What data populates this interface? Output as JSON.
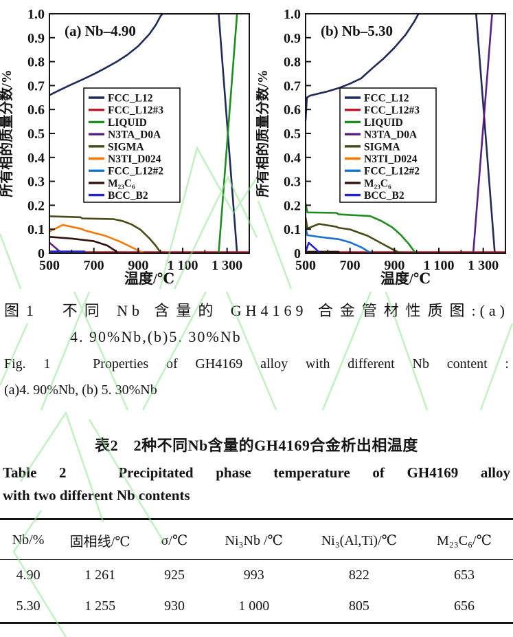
{
  "figure": {
    "caption_cn_line1": "图1　不同 Nb 含量的 GH4169 合金管材性质图:(a)",
    "caption_cn_line2": "4. 90%Nb,(b)5. 30%Nb",
    "caption_en_line1": "Fig. 1　Properties of GH4169 alloy with different Nb content :",
    "caption_en_line2": "(a)4. 90%Nb, (b) 5. 30%Nb"
  },
  "chart_data": [
    {
      "type": "line",
      "name": "phase-diagram-a",
      "title": "(a) Nb–4.90",
      "xlabel": "温度/℃",
      "ylabel": "所有相的质量分数/%",
      "xlim": [
        500,
        1400
      ],
      "ylim": [
        0,
        1.0
      ],
      "xticks": [
        500,
        700,
        900,
        1100,
        1300
      ],
      "xtick_labels": [
        "500",
        "700",
        "900",
        "1 100",
        "1 300"
      ],
      "xminor": [
        600,
        800,
        1000,
        1200
      ],
      "yticks": [
        0,
        0.1,
        0.2,
        0.3,
        0.4,
        0.5,
        0.6,
        0.7,
        0.8,
        0.9,
        1.0
      ],
      "ytick_labels": [
        "0",
        "0.1",
        "0.2",
        "0.3",
        "0.4",
        "0.5",
        "0.6",
        "0.7",
        "0.8",
        "0.9",
        "1.0"
      ],
      "legend_position": "center-left-in-plot",
      "grid": false,
      "series": [
        {
          "name": "FCC_L12",
          "color": "#1e2a5a",
          "points": [
            [
              500,
              0.66
            ],
            [
              550,
              0.683
            ],
            [
              600,
              0.705
            ],
            [
              650,
              0.726
            ],
            [
              700,
              0.748
            ],
            [
              750,
              0.772
            ],
            [
              800,
              0.798
            ],
            [
              850,
              0.828
            ],
            [
              900,
              0.865
            ],
            [
              950,
              0.915
            ],
            [
              980,
              0.955
            ],
            [
              1000,
              0.99
            ],
            [
              1010,
              1.0
            ],
            [
              1262,
              1.0
            ],
            [
              1345,
              0.0
            ],
            [
              1400,
              0.0
            ]
          ]
        },
        {
          "name": "FCC_L12#3",
          "color": "#c01828",
          "points": [
            [
              660,
              0.004
            ],
            [
              1400,
              0.004
            ]
          ]
        },
        {
          "name": "LIQUID",
          "color": "#1f8c1f",
          "points": [
            [
              1262,
              0.0
            ],
            [
              1345,
              1.0
            ]
          ]
        },
        {
          "name": "N3TA_D0A",
          "color": "#5a1f82",
          "points": [
            [
              500,
              0.044
            ],
            [
              555,
              0.0
            ]
          ]
        },
        {
          "name": "SIGMA",
          "color": "#4a4a14",
          "points": [
            [
              500,
              0.154
            ],
            [
              640,
              0.15
            ],
            [
              648,
              0.145
            ],
            [
              790,
              0.142
            ],
            [
              830,
              0.134
            ],
            [
              870,
              0.12
            ],
            [
              910,
              0.098
            ],
            [
              950,
              0.062
            ],
            [
              980,
              0.03
            ],
            [
              1002,
              0.0
            ]
          ]
        },
        {
          "name": "N3TI_D024",
          "color": "#f57900",
          "points": [
            [
              500,
              0.09
            ],
            [
              560,
              0.118
            ],
            [
              650,
              0.1
            ],
            [
              655,
              0.096
            ],
            [
              750,
              0.073
            ],
            [
              820,
              0.047
            ],
            [
              880,
              0.02
            ],
            [
              925,
              0.0
            ]
          ]
        },
        {
          "name": "FCC_L12#2",
          "color": "#1873c8",
          "points": []
        },
        {
          "name": "M₂₃C₆",
          "color": "#34100c",
          "points": [
            [
              500,
              0.068
            ],
            [
              600,
              0.061
            ],
            [
              700,
              0.05
            ],
            [
              760,
              0.032
            ],
            [
              800,
              0.008
            ],
            [
              808,
              0.0
            ]
          ]
        },
        {
          "name": "BCC_B2",
          "color": "#2222cc",
          "points": [
            [
              500,
              0.007
            ],
            [
              658,
              0.007
            ],
            [
              660,
              0.0
            ]
          ]
        }
      ]
    },
    {
      "type": "line",
      "name": "phase-diagram-b",
      "title": "(b) Nb–5.30",
      "xlabel": "温度/℃",
      "ylabel": "所有相的质量分数/%",
      "xlim": [
        500,
        1400
      ],
      "ylim": [
        0,
        1.0
      ],
      "xticks": [
        500,
        700,
        900,
        1100,
        1300
      ],
      "xtick_labels": [
        "500",
        "700",
        "900",
        "1 100",
        "1 300"
      ],
      "xminor": [
        600,
        800,
        1000,
        1200
      ],
      "yticks": [
        0,
        0.1,
        0.2,
        0.3,
        0.4,
        0.5,
        0.6,
        0.7,
        0.8,
        0.9,
        1.0
      ],
      "ytick_labels": [
        "0",
        "0.1",
        "0.2",
        "0.3",
        "0.4",
        "0.5",
        "0.6",
        "0.7",
        "0.8",
        "0.9",
        "1.0"
      ],
      "legend_position": "center-left-in-plot",
      "grid": false,
      "series": [
        {
          "name": "FCC_L12",
          "color": "#1e2a5a",
          "points": [
            [
              500,
              0.555
            ],
            [
              506,
              0.65
            ],
            [
              520,
              0.658
            ],
            [
              600,
              0.676
            ],
            [
              650,
              0.69
            ],
            [
              700,
              0.708
            ],
            [
              750,
              0.73
            ],
            [
              800,
              0.772
            ],
            [
              850,
              0.812
            ],
            [
              900,
              0.858
            ],
            [
              950,
              0.912
            ],
            [
              990,
              0.968
            ],
            [
              1008,
              1.0
            ],
            [
              1268,
              1.0
            ],
            [
              1352,
              0.0
            ],
            [
              1400,
              0.0
            ]
          ]
        },
        {
          "name": "FCC_L12#3",
          "color": "#c01828",
          "points": [
            [
              652,
              0.004
            ],
            [
              1400,
              0.004
            ]
          ]
        },
        {
          "name": "LIQUID",
          "color": "#1f8c1f",
          "points": [
            [
              500,
              0.208
            ],
            [
              508,
              0.17
            ],
            [
              640,
              0.168
            ],
            [
              648,
              0.162
            ],
            [
              790,
              0.155
            ],
            [
              840,
              0.135
            ],
            [
              890,
              0.108
            ],
            [
              930,
              0.075
            ],
            [
              965,
              0.038
            ],
            [
              995,
              0.0
            ]
          ]
        },
        {
          "name": "N3TA_D0A",
          "color": "#5a1f82",
          "points": [
            [
              1255,
              0.0
            ],
            [
              1340,
              1.0
            ]
          ]
        },
        {
          "name": "SIGMA",
          "color": "#4a4a14",
          "points": [
            [
              500,
              0.15
            ],
            [
              508,
              0.103
            ],
            [
              560,
              0.122
            ],
            [
              640,
              0.11
            ],
            [
              648,
              0.106
            ],
            [
              700,
              0.099
            ],
            [
              780,
              0.072
            ],
            [
              840,
              0.042
            ],
            [
              900,
              0.012
            ],
            [
              928,
              0.0
            ]
          ]
        },
        {
          "name": "N3TI_D024",
          "color": "#f57900",
          "points": []
        },
        {
          "name": "FCC_L12#2",
          "color": "#1873c8",
          "points": [
            [
              500,
              0.105
            ],
            [
              508,
              0.075
            ],
            [
              560,
              0.068
            ],
            [
              650,
              0.058
            ],
            [
              700,
              0.045
            ],
            [
              750,
              0.025
            ],
            [
              795,
              0.0
            ]
          ]
        },
        {
          "name": "M₂₃C₆",
          "color": "#34100c",
          "points": [
            [
              500,
              0.006
            ],
            [
              648,
              0.006
            ],
            [
              652,
              0.0
            ]
          ]
        },
        {
          "name": "BCC_B2",
          "color": "#2222cc",
          "points": [
            [
              500,
              0.005
            ],
            [
              514,
              0.043
            ],
            [
              545,
              0.018
            ],
            [
              565,
              0.0
            ]
          ]
        }
      ]
    }
  ],
  "table": {
    "title_cn": "表2　2种不同Nb含量的GH4169合金析出相温度",
    "title_en_line1": "Table 2　Precipitated phase temperature of GH4169 alloy",
    "title_en_line2": "with two different Nb contents",
    "headers": [
      "Nb/%",
      "固相线/℃",
      "σ/℃",
      "Ni₃Nb /℃",
      "Ni₃(Al,Ti)/℃",
      "M₂₃C₆/℃"
    ],
    "rows": [
      [
        "4.90",
        "1 261",
        "925",
        "993",
        "822",
        "653"
      ],
      [
        "5.30",
        "1 255",
        "930",
        "1 000",
        "805",
        "656"
      ]
    ]
  },
  "colors": {
    "text": "#141414",
    "watermark": "#8fe68f"
  }
}
